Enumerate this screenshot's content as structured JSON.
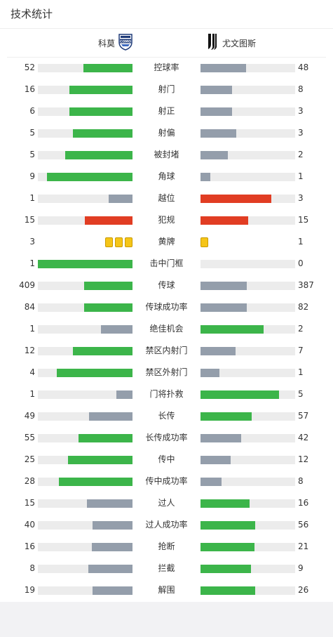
{
  "title": "技术统计",
  "teams": {
    "home": {
      "name": "科莫",
      "logo_text": "COMO"
    },
    "away": {
      "name": "尤文图斯"
    }
  },
  "colors": {
    "green": "#3cb54a",
    "gray": "#949eab",
    "red": "#e13d23",
    "yellow": "#f5c518",
    "track": "#ececec"
  },
  "stats": [
    {
      "label": "控球率",
      "home": "52",
      "away": "48",
      "home_pct": 0.52,
      "away_pct": 0.48,
      "home_color": "green",
      "away_color": "gray"
    },
    {
      "label": "射门",
      "home": "16",
      "away": "8",
      "home_pct": 0.67,
      "away_pct": 0.33,
      "home_color": "green",
      "away_color": "gray"
    },
    {
      "label": "射正",
      "home": "6",
      "away": "3",
      "home_pct": 0.67,
      "away_pct": 0.33,
      "home_color": "green",
      "away_color": "gray"
    },
    {
      "label": "射偏",
      "home": "5",
      "away": "3",
      "home_pct": 0.63,
      "away_pct": 0.38,
      "home_color": "green",
      "away_color": "gray"
    },
    {
      "label": "被封堵",
      "home": "5",
      "away": "2",
      "home_pct": 0.71,
      "away_pct": 0.29,
      "home_color": "green",
      "away_color": "gray"
    },
    {
      "label": "角球",
      "home": "9",
      "away": "1",
      "home_pct": 0.9,
      "away_pct": 0.1,
      "home_color": "green",
      "away_color": "gray"
    },
    {
      "label": "越位",
      "home": "1",
      "away": "3",
      "home_pct": 0.25,
      "away_pct": 0.75,
      "home_color": "gray",
      "away_color": "red"
    },
    {
      "label": "犯规",
      "home": "15",
      "away": "15",
      "home_pct": 0.5,
      "away_pct": 0.5,
      "home_color": "red",
      "away_color": "red"
    },
    {
      "label": "黄牌",
      "home": "3",
      "away": "1",
      "type": "cards"
    },
    {
      "label": "击中门框",
      "home": "1",
      "away": "0",
      "home_pct": 1.0,
      "away_pct": 0.0,
      "home_color": "green",
      "away_color": "gray"
    },
    {
      "label": "传球",
      "home": "409",
      "away": "387",
      "home_pct": 0.51,
      "away_pct": 0.49,
      "home_color": "green",
      "away_color": "gray"
    },
    {
      "label": "传球成功率",
      "home": "84",
      "away": "82",
      "home_pct": 0.51,
      "away_pct": 0.49,
      "home_color": "green",
      "away_color": "gray"
    },
    {
      "label": "绝佳机会",
      "home": "1",
      "away": "2",
      "home_pct": 0.33,
      "away_pct": 0.67,
      "home_color": "gray",
      "away_color": "green"
    },
    {
      "label": "禁区内射门",
      "home": "12",
      "away": "7",
      "home_pct": 0.63,
      "away_pct": 0.37,
      "home_color": "green",
      "away_color": "gray"
    },
    {
      "label": "禁区外射门",
      "home": "4",
      "away": "1",
      "home_pct": 0.8,
      "away_pct": 0.2,
      "home_color": "green",
      "away_color": "gray"
    },
    {
      "label": "门将扑救",
      "home": "1",
      "away": "5",
      "home_pct": 0.17,
      "away_pct": 0.83,
      "home_color": "gray",
      "away_color": "green"
    },
    {
      "label": "长传",
      "home": "49",
      "away": "57",
      "home_pct": 0.46,
      "away_pct": 0.54,
      "home_color": "gray",
      "away_color": "green"
    },
    {
      "label": "长传成功率",
      "home": "55",
      "away": "42",
      "home_pct": 0.57,
      "away_pct": 0.43,
      "home_color": "green",
      "away_color": "gray"
    },
    {
      "label": "传中",
      "home": "25",
      "away": "12",
      "home_pct": 0.68,
      "away_pct": 0.32,
      "home_color": "green",
      "away_color": "gray"
    },
    {
      "label": "传中成功率",
      "home": "28",
      "away": "8",
      "home_pct": 0.78,
      "away_pct": 0.22,
      "home_color": "green",
      "away_color": "gray"
    },
    {
      "label": "过人",
      "home": "15",
      "away": "16",
      "home_pct": 0.48,
      "away_pct": 0.52,
      "home_color": "gray",
      "away_color": "green"
    },
    {
      "label": "过人成功率",
      "home": "40",
      "away": "56",
      "home_pct": 0.42,
      "away_pct": 0.58,
      "home_color": "gray",
      "away_color": "green"
    },
    {
      "label": "抢断",
      "home": "16",
      "away": "21",
      "home_pct": 0.43,
      "away_pct": 0.57,
      "home_color": "gray",
      "away_color": "green"
    },
    {
      "label": "拦截",
      "home": "8",
      "away": "9",
      "home_pct": 0.47,
      "away_pct": 0.53,
      "home_color": "gray",
      "away_color": "green"
    },
    {
      "label": "解围",
      "home": "19",
      "away": "26",
      "home_pct": 0.42,
      "away_pct": 0.58,
      "home_color": "gray",
      "away_color": "green"
    }
  ]
}
